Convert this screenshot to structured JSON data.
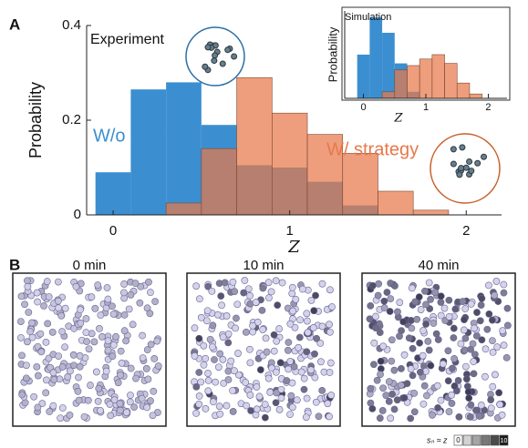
{
  "chart_data": [
    {
      "type": "histogram",
      "annotation": "Experiment",
      "xlabel": "Z",
      "ylabel": "Probability",
      "bins": [
        -0.1,
        0.1,
        0.3,
        0.5,
        0.7,
        0.9,
        1.1,
        1.3,
        1.5,
        1.7,
        1.9
      ],
      "series": [
        {
          "name": "W/o strategy",
          "color": "#3b8fd0",
          "values": [
            0.09,
            0.265,
            0.28,
            0.19,
            0.105,
            0.1,
            0.07,
            0.02,
            0,
            0
          ]
        },
        {
          "name": "W/ strategy",
          "color": "#e8784a",
          "values": [
            0,
            0,
            0.025,
            0.14,
            0.29,
            0.215,
            0.17,
            0.13,
            0.05,
            0.01
          ]
        }
      ],
      "xlim": [
        -0.15,
        2.2
      ],
      "ylim": [
        0,
        0.4
      ],
      "xticks": [
        0,
        1,
        2
      ],
      "yticks": [
        0,
        0.2,
        0.4
      ]
    },
    {
      "type": "histogram",
      "annotation": "Simulation",
      "xlabel": "Z",
      "ylabel": "Probability",
      "bins": [
        -0.1,
        0.1,
        0.3,
        0.5,
        0.7,
        0.9,
        1.1,
        1.3,
        1.5,
        1.7,
        1.9
      ],
      "series": [
        {
          "color": "#3b8fd0",
          "values": [
            0.2,
            0.37,
            0.3,
            0.16,
            0.03,
            0,
            0,
            0,
            0,
            0
          ]
        },
        {
          "color": "#e8784a",
          "values": [
            0,
            0,
            0.03,
            0.13,
            0.15,
            0.18,
            0.2,
            0.16,
            0.07,
            0.02
          ]
        }
      ],
      "xlim": [
        -0.3,
        2.3
      ],
      "ylim": [
        0,
        0.4
      ],
      "xticks": [
        0,
        1,
        2
      ]
    }
  ],
  "panel_labels": [
    "A",
    "B"
  ],
  "snapshots": {
    "titles": [
      "0 min",
      "10 min",
      "40 min"
    ],
    "colorbar_label": "sₙ ≈ z",
    "colorbar_ticks": [
      0,
      10
    ]
  }
}
